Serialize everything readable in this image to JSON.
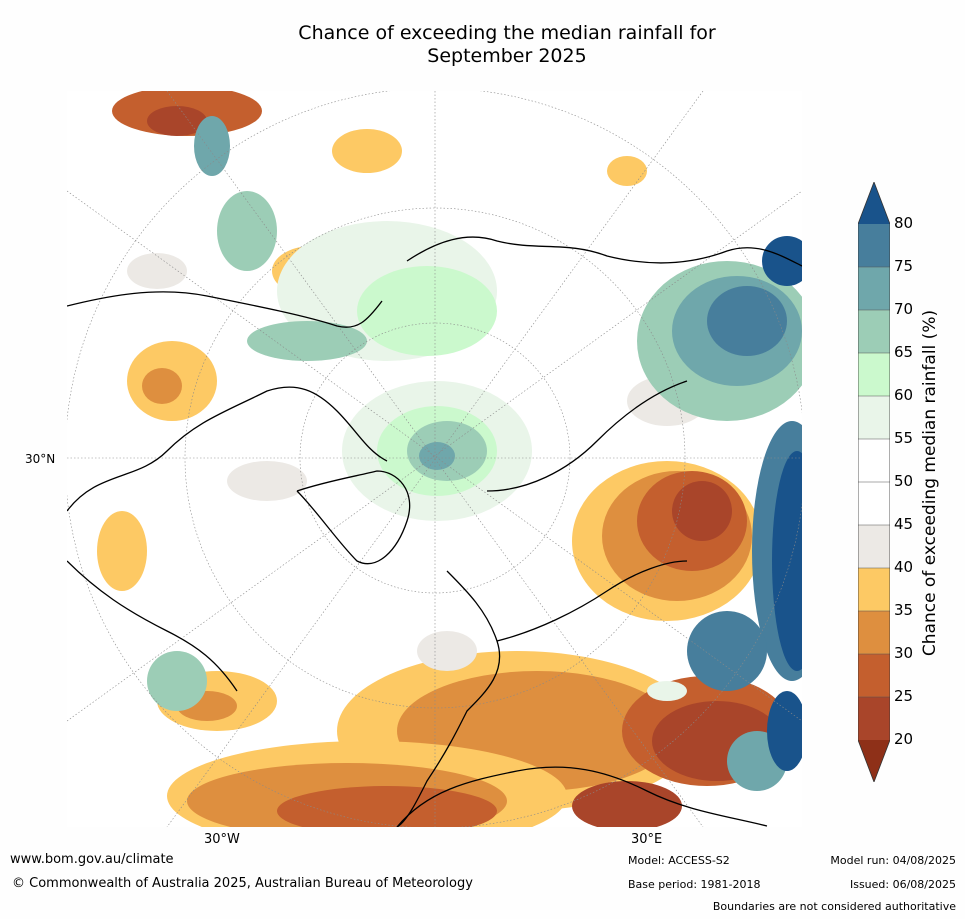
{
  "title": {
    "line1": "Chance of exceeding the median rainfall for",
    "line2": "September 2025"
  },
  "map": {
    "lat_label": "30°N",
    "lon_labels": [
      "30°W",
      "30°E"
    ]
  },
  "colorbar": {
    "label": "Chance of exceeding median rainfall (%)",
    "ticks": [
      "20",
      "25",
      "30",
      "35",
      "40",
      "45",
      "50",
      "55",
      "60",
      "65",
      "70",
      "75",
      "80"
    ],
    "colors": {
      "below_20": "#8e3018",
      "20_25": "#a9452a",
      "25_30": "#c45f2e",
      "30_35": "#de8f3f",
      "35_40": "#fdc964",
      "40_45": "#ece9e5",
      "45_50": "#ffffff",
      "50_55": "#ffffff",
      "55_60": "#e9f5e9",
      "60_65": "#cbf9cd",
      "65_70": "#9ccdb6",
      "70_75": "#6fa7ab",
      "75_80": "#477e9c",
      "above_80": "#19538b"
    }
  },
  "footer": {
    "website": "www.bom.gov.au/climate",
    "copyright": "© Commonwealth of Australia 2025, Australian Bureau of Meteorology",
    "model": "Model: ACCESS-S2",
    "base_period": "Base period: 1981-2018",
    "model_run": "Model run: 04/08/2025",
    "issued": "Issued: 06/08/2025",
    "disclaimer": "Boundaries are not considered authoritative"
  }
}
